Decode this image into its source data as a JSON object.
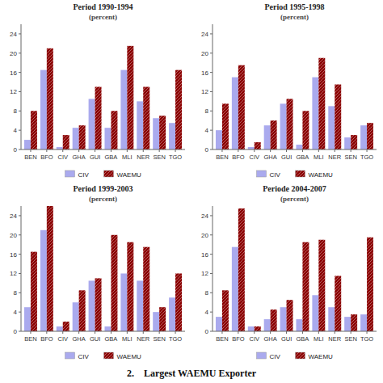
{
  "title": "2.    Largest WAEMU Exporter",
  "chart_data": [
    {
      "type": "bar",
      "title": "Period 1990-1994",
      "subtitle": "(percent)",
      "categories": [
        "BEN",
        "BFO",
        "CIV",
        "GHA",
        "GUI",
        "GBA",
        "MLI",
        "NER",
        "SEN",
        "TGO"
      ],
      "series": [
        {
          "name": "CIV",
          "color": "#aaaaee",
          "values": [
            2.0,
            16.5,
            0.5,
            4.5,
            10.5,
            4.5,
            16.5,
            10.0,
            6.5,
            5.5
          ]
        },
        {
          "name": "WAEMU",
          "color": "#8B0000",
          "values": [
            8.0,
            21.0,
            3.0,
            5.0,
            13.0,
            8.0,
            21.5,
            13.0,
            7.0,
            16.5
          ]
        }
      ],
      "ylim": [
        0,
        26
      ],
      "yticks": [
        0,
        4,
        8,
        12,
        16,
        20,
        24
      ],
      "grid": false,
      "legend": "bottom"
    },
    {
      "type": "bar",
      "title": "Period 1995-1998",
      "subtitle": "(percent)",
      "categories": [
        "BEN",
        "BFO",
        "CIV",
        "GHA",
        "GUI",
        "GBA",
        "MLI",
        "NER",
        "SEN",
        "TGO"
      ],
      "series": [
        {
          "name": "CIV",
          "color": "#aaaaee",
          "values": [
            4.0,
            15.0,
            0.5,
            5.0,
            9.5,
            1.0,
            15.0,
            9.0,
            2.5,
            5.0
          ]
        },
        {
          "name": "WAEMU",
          "color": "#8B0000",
          "values": [
            9.5,
            17.5,
            1.5,
            6.0,
            10.5,
            8.0,
            19.0,
            13.5,
            3.0,
            5.5
          ]
        }
      ],
      "ylim": [
        0,
        26
      ],
      "yticks": [
        0,
        4,
        8,
        12,
        16,
        20,
        24
      ],
      "grid": false,
      "legend": "bottom"
    },
    {
      "type": "bar",
      "title": "Period 1999-2003",
      "subtitle": "(percent)",
      "categories": [
        "BEN",
        "BFO",
        "CIV",
        "GHA",
        "GUI",
        "GBA",
        "MLI",
        "NER",
        "SEN",
        "TGO"
      ],
      "series": [
        {
          "name": "CIV",
          "color": "#aaaaee",
          "values": [
            5.0,
            21.0,
            1.0,
            6.0,
            10.5,
            1.0,
            12.0,
            10.5,
            4.0,
            7.0
          ]
        },
        {
          "name": "WAEMU",
          "color": "#8B0000",
          "values": [
            16.5,
            26.0,
            2.0,
            8.5,
            11.0,
            20.0,
            18.5,
            17.5,
            5.0,
            12.0
          ]
        }
      ],
      "ylim": [
        0,
        26
      ],
      "yticks": [
        0,
        4,
        8,
        12,
        16,
        20,
        24
      ],
      "grid": false,
      "legend": "bottom"
    },
    {
      "type": "bar",
      "title": "Periode 2004-2007",
      "subtitle": "(percent)",
      "categories": [
        "BEN",
        "BFO",
        "CIV",
        "GHA",
        "GUI",
        "GBA",
        "MLI",
        "NER",
        "SEN",
        "TGO"
      ],
      "series": [
        {
          "name": "CIV",
          "color": "#aaaaee",
          "values": [
            3.0,
            17.5,
            1.0,
            2.5,
            5.0,
            2.5,
            7.5,
            5.0,
            3.0,
            3.5
          ]
        },
        {
          "name": "WAEMU",
          "color": "#8B0000",
          "values": [
            8.5,
            25.5,
            1.0,
            4.5,
            6.5,
            18.5,
            19.0,
            11.5,
            3.5,
            19.5
          ]
        }
      ],
      "ylim": [
        0,
        26
      ],
      "yticks": [
        0,
        4,
        8,
        12,
        16,
        20,
        24
      ],
      "grid": false,
      "legend": "bottom"
    }
  ]
}
